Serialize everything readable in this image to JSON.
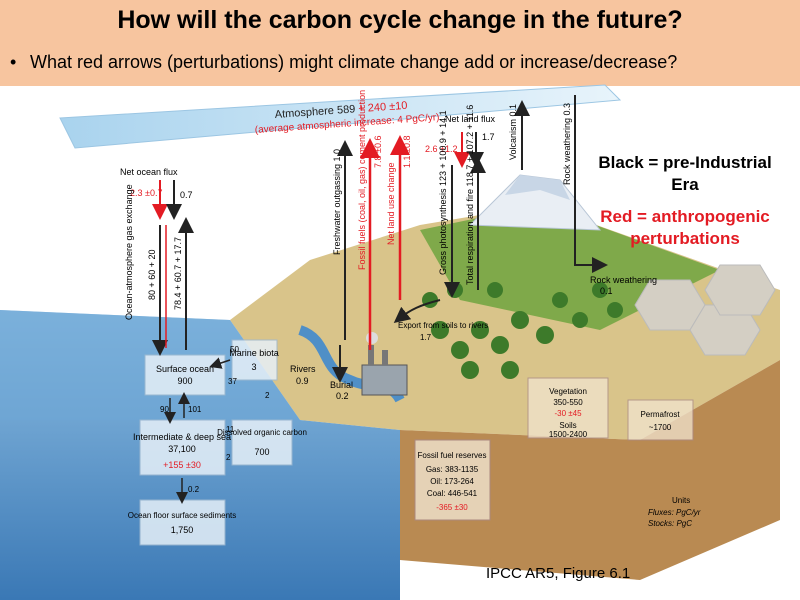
{
  "slide": {
    "title": "How will the carbon cycle change in the future?",
    "bullet_marker": "•",
    "bullet": "What red arrows (perturbations) might climate change add or increase/decrease?",
    "legend_black": "Black = pre-Industrial Era",
    "legend_red": "Red = anthropogenic perturbations",
    "citation": "IPCC AR5, Figure 6.1"
  },
  "diagram": {
    "atmosphere_label": "Atmosphere 589",
    "atmosphere_change": "+ 240 ±10",
    "atmosphere_note": "(average atmospheric increase: 4 PgC/yr)",
    "net_ocean_flux": "Net ocean flux",
    "net_ocean_red": "2.3 ±0.7",
    "net_ocean_black": "0.7",
    "ocean_exchange_label": "Ocean-atmosphere gas exchange",
    "ocean_down": "80 + 60 + 20",
    "ocean_up": "78.4 + 60.7 + 17.7",
    "freshwater_outgassing": "Freshwater outgassing 1.0",
    "fossil_fuels": "Fossil fuels (coal, oil, gas) cement production",
    "fossil_fuels_value": "7.8 ±0.6",
    "land_use": "Net land use change",
    "land_use_value": "1.1 ±0.8",
    "net_land_flux": "Net land flux",
    "net_land_red": "2.6 ±1.2",
    "net_land_black": "1.7",
    "gpp": "Gross photosynthesis 123 + 100.9 + 14.1",
    "respiration": "Total respiration and fire 118.7 + 107.2 + 11.6",
    "volcanism": "Volcanism 0.1",
    "rock_weathering_flux": "Rock weathering 0.3",
    "rock_weathering_label": "Rock weathering",
    "rock_weathering_value": "0.1",
    "export_soils": "Export from soils to rivers",
    "export_soils_value": "1.7",
    "rivers": "Rivers",
    "rivers_value": "0.9",
    "burial": "Burial",
    "burial_value": "0.2",
    "surface_ocean": "Surface ocean",
    "surface_ocean_value": "900",
    "marine_biota": "Marine biota",
    "marine_biota_value": "3",
    "flux_50": "50",
    "flux_37": "37",
    "flux_2": "2",
    "flux_90": "90",
    "flux_101": "101",
    "flux_11": "11",
    "flux_2b": "2",
    "deep_sea": "Intermediate & deep sea",
    "deep_sea_value": "37,100",
    "deep_sea_change": "+155 ±30",
    "doc": "Dissolved organic carbon",
    "doc_value": "700",
    "flux_sed": "0.2",
    "sediments": "Ocean floor surface sediments",
    "sediments_value": "1,750",
    "vegetation": "Vegetation",
    "vegetation_value": "350-550",
    "vegetation_change": "-30 ±45",
    "soils": "Soils",
    "soils_value": "1500-2400",
    "permafrost": "Permafrost",
    "permafrost_value": "~1700",
    "ff_reserves": "Fossil fuel reserves",
    "ff_gas": "Gas: 383-1135",
    "ff_oil": "Oil: 173-264",
    "ff_coal": "Coal: 446-541",
    "ff_change": "-365 ±30",
    "units_title": "Units",
    "units_fluxes": "Fluxes: PgC/yr",
    "units_stocks": "Stocks: PgC"
  },
  "colors": {
    "title_band": "#f7c59f",
    "anthropogenic": "#e31b23",
    "atmosphere": "#bfe0f2",
    "ocean": "#4f8fc7",
    "land": "#d9b87a"
  }
}
